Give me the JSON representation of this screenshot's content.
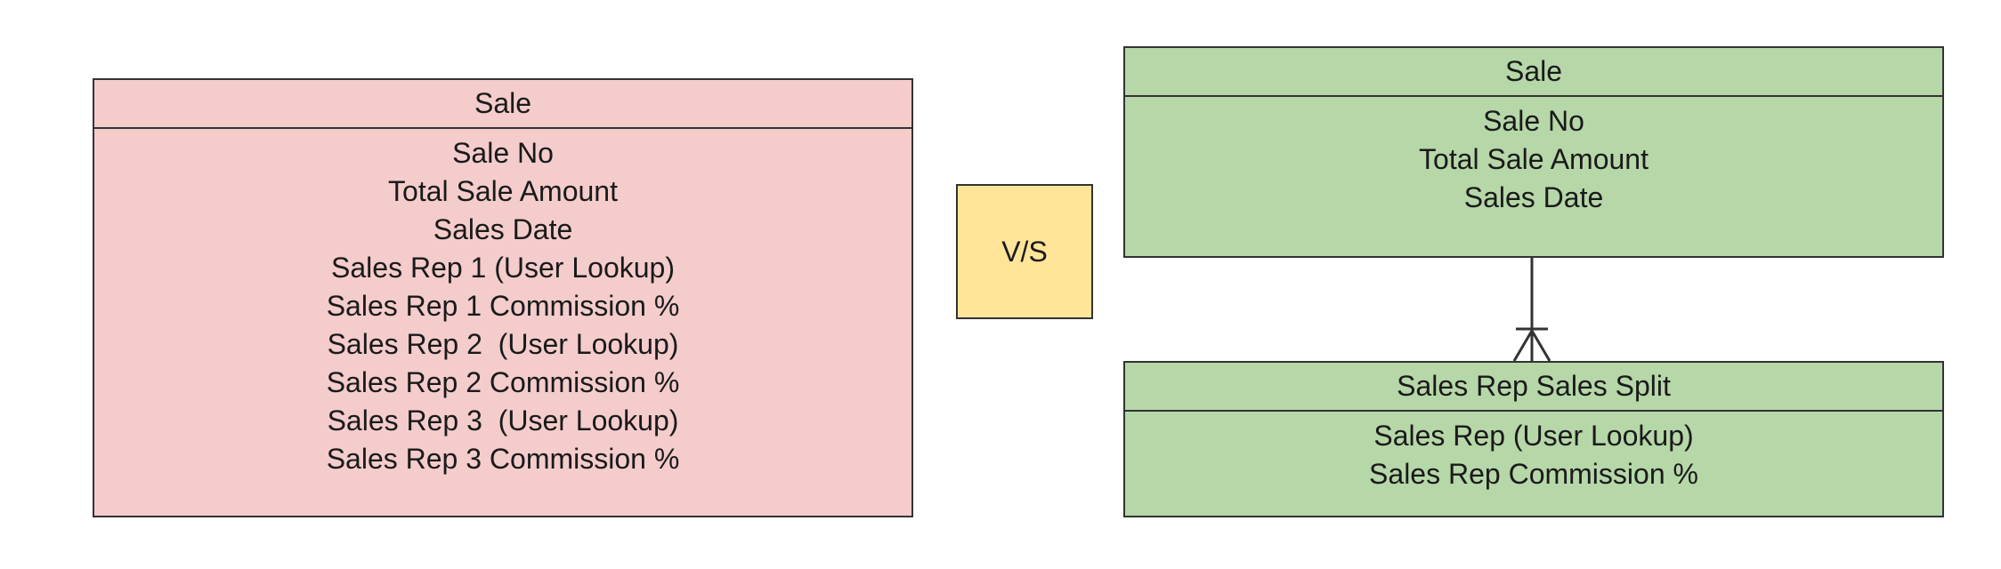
{
  "colors": {
    "left_entity_fill": "#f4cccc",
    "right_entity_fill": "#b6d7a8",
    "vs_fill": "#ffe599",
    "border": "#333333"
  },
  "left_entity": {
    "title": "Sale",
    "fields": [
      "Sale No",
      "Total Sale Amount",
      "Sales Date",
      "Sales Rep 1 (User Lookup)",
      "Sales Rep 1 Commission %",
      "Sales Rep 2  (User Lookup)",
      "Sales Rep 2 Commission %",
      "Sales Rep 3  (User Lookup)",
      "Sales Rep 3 Commission %"
    ]
  },
  "vs_label": "V/S",
  "right_sale_entity": {
    "title": "Sale",
    "fields": [
      "Sale No",
      "Total Sale Amount",
      "Sales Date"
    ]
  },
  "right_split_entity": {
    "title": "Sales Rep Sales Split",
    "fields": [
      "Sales Rep (User Lookup)",
      "Sales Rep Commission %"
    ]
  },
  "relationship": {
    "type": "one-to-many",
    "from": "Sale",
    "to": "Sales Rep Sales Split"
  }
}
